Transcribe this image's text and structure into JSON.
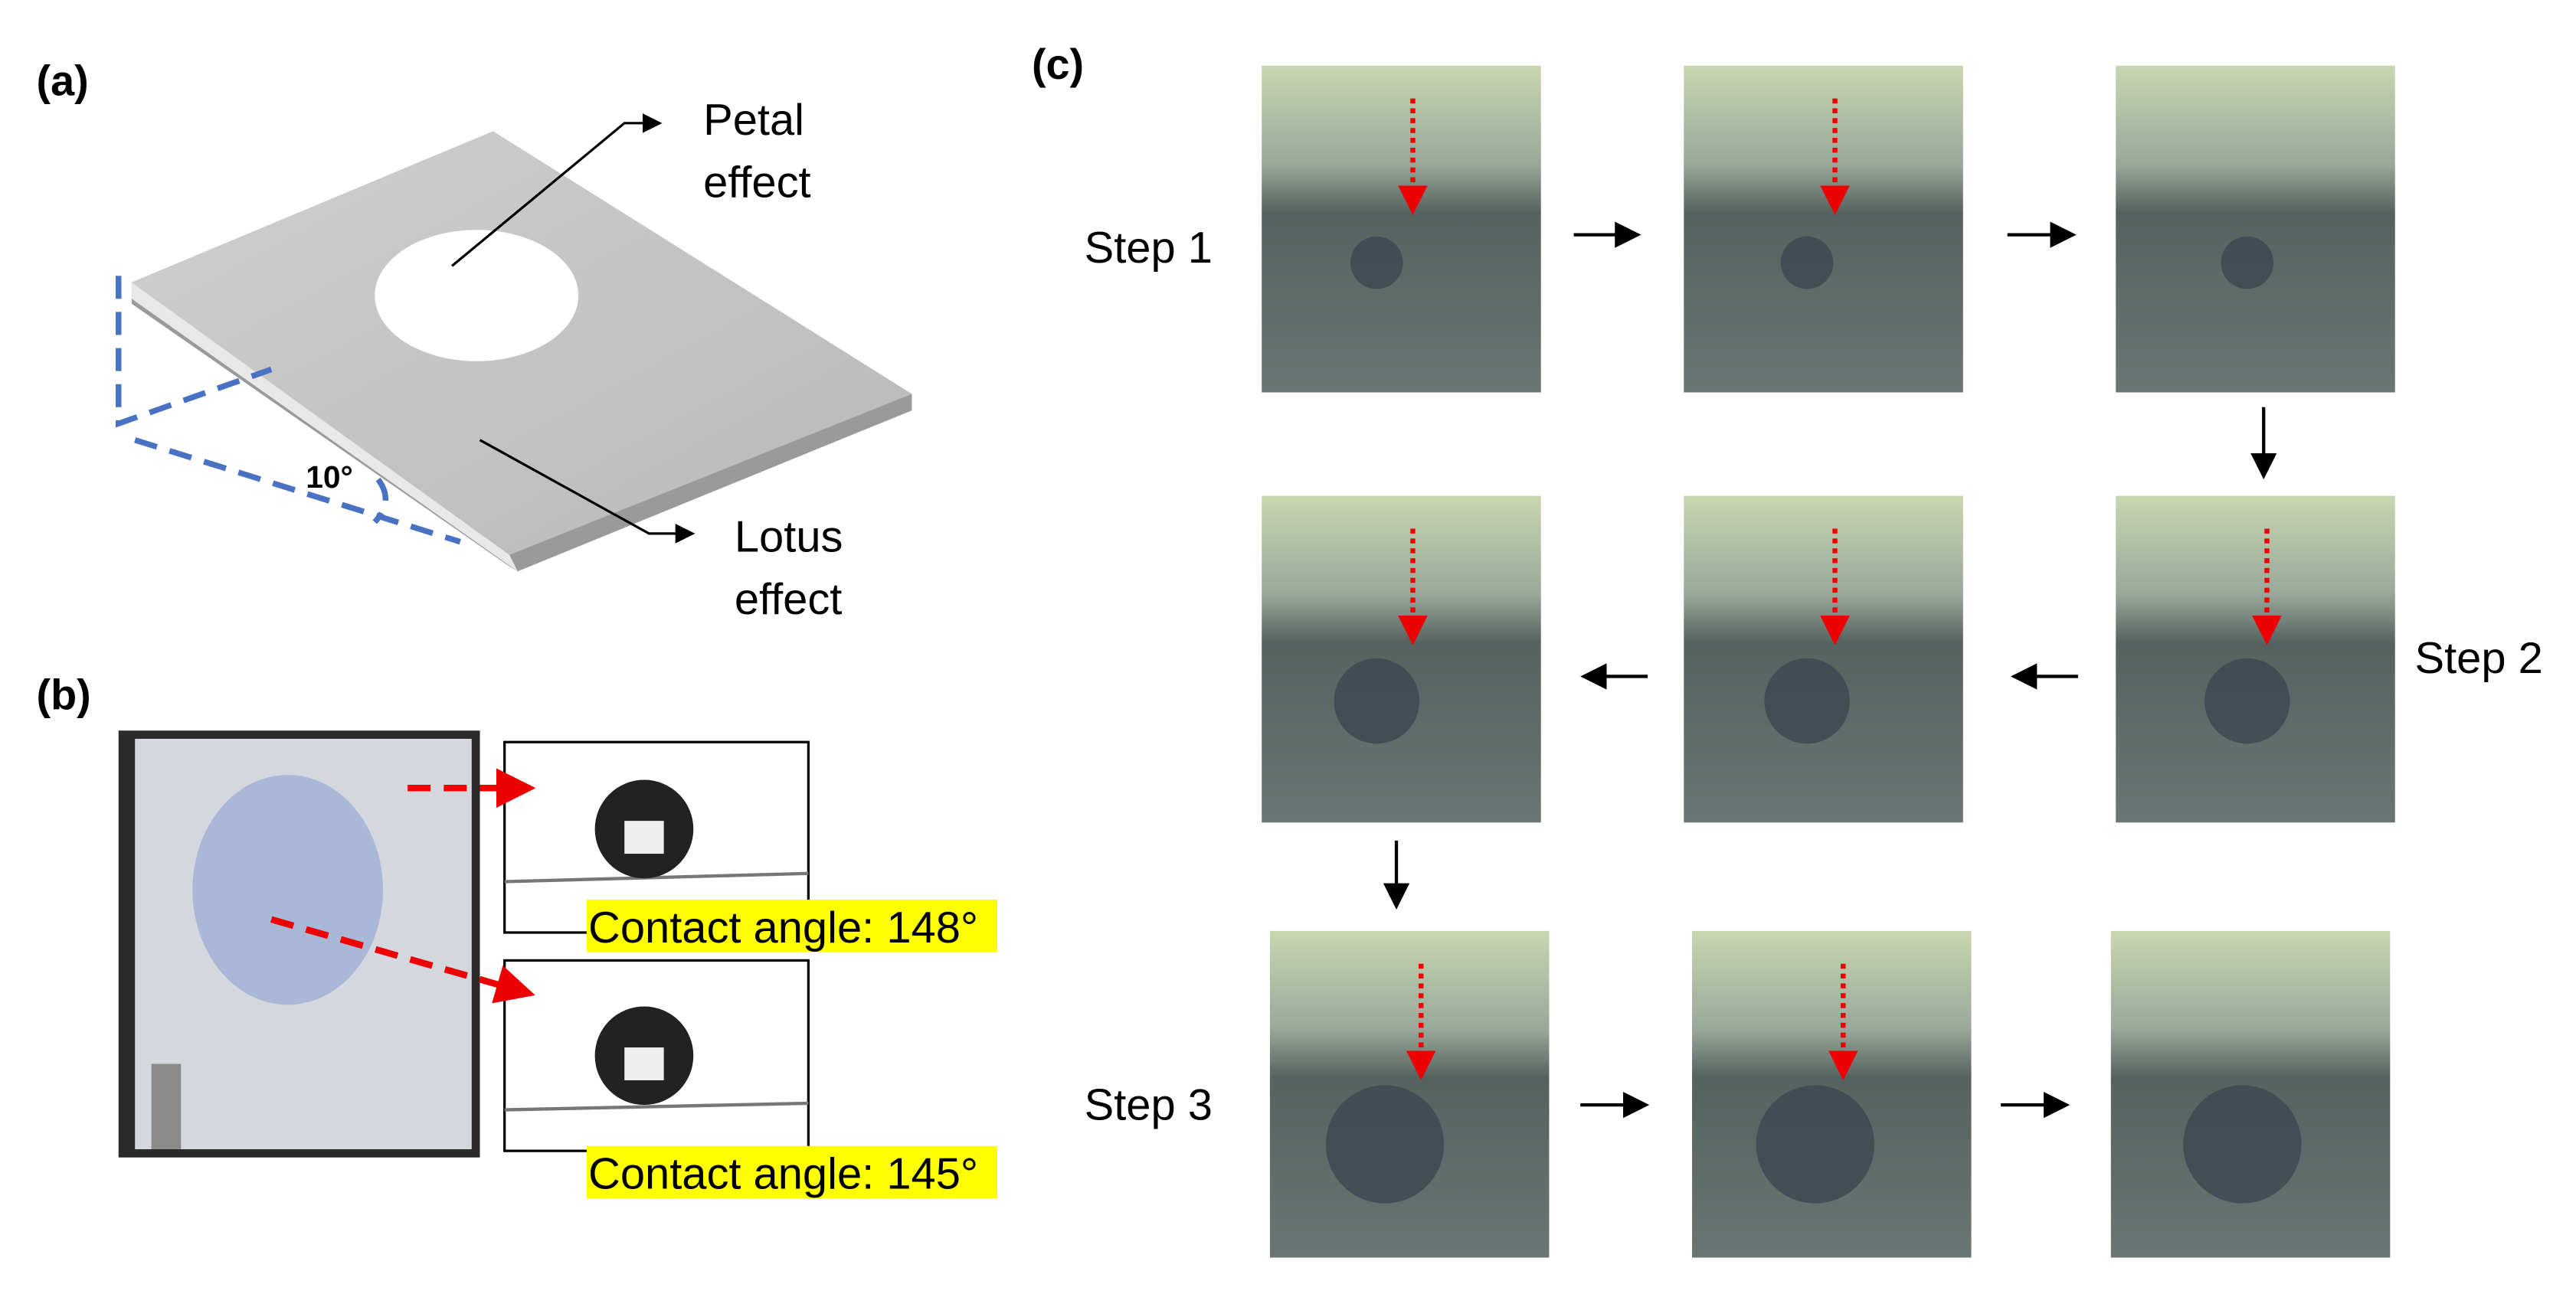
{
  "panel_a": {
    "label": "(a)",
    "petal_lines": [
      "Petal",
      "effect"
    ],
    "lotus_lines": [
      "Lotus",
      "effect"
    ],
    "angle": "10°"
  },
  "panel_b": {
    "label": "(b)",
    "contact_angles": [
      "Contact angle: 148°",
      "Contact angle: 145°"
    ]
  },
  "panel_c": {
    "label": "(c)",
    "steps": [
      "Step 1",
      "Step 2",
      "Step 3"
    ]
  }
}
